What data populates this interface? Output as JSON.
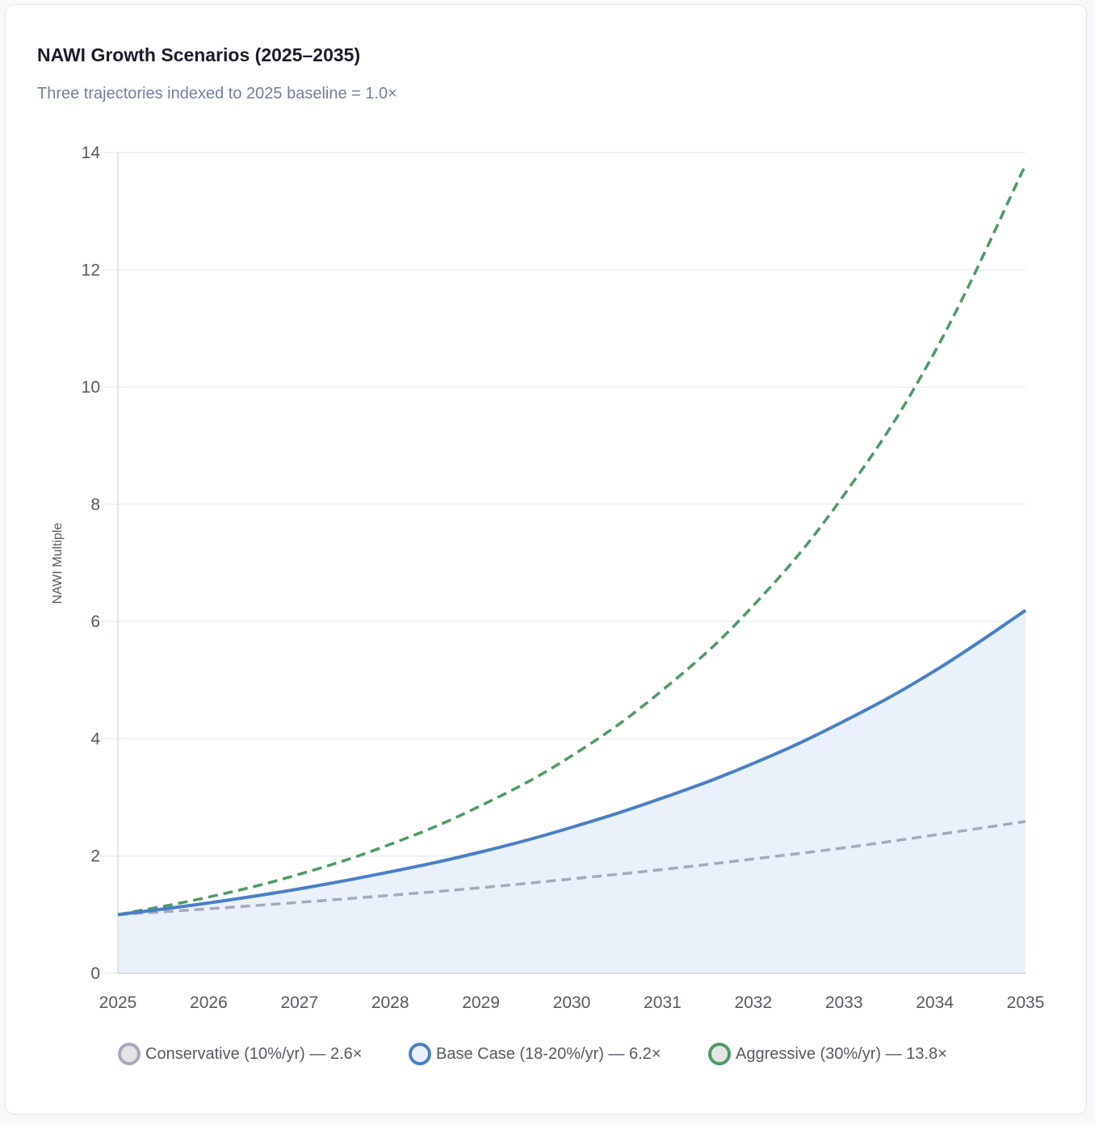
{
  "card": {
    "title": "NAWI Growth Scenarios (2025–2035)",
    "subtitle": "Three trajectories indexed to 2025 baseline = 1.0×"
  },
  "colors": {
    "conservative": "#a4aabb",
    "base": "#4a7fc8",
    "aggressive": "#4e9a65",
    "base_fill": "#ebf1fa",
    "grid": "#ebedf1",
    "axis": "#d9dde3"
  },
  "legend": [
    {
      "label": "Conservative (10%/yr) — 2.6×",
      "series": "conservative",
      "fill": "#e4e4e4",
      "border": "#a4aabb"
    },
    {
      "label": "Base Case (18-20%/yr) — 6.2×",
      "series": "base",
      "fill": "#eaf0fa",
      "border": "#4a7fc8"
    },
    {
      "label": "Aggressive (30%/yr) — 13.8×",
      "series": "aggressive",
      "fill": "#e4e4e4",
      "border": "#4e9a65"
    }
  ],
  "chart_data": {
    "type": "line",
    "title": "NAWI Growth Scenarios (2025–2035)",
    "subtitle": "Three trajectories indexed to 2025 baseline = 1.0×",
    "xlabel": "",
    "ylabel": "NAWI Multiple",
    "x": [
      "2025",
      "2026",
      "2027",
      "2028",
      "2029",
      "2030",
      "2031",
      "2032",
      "2033",
      "2034",
      "2035"
    ],
    "ylim": [
      0,
      14
    ],
    "yticks": [
      0,
      2,
      4,
      6,
      8,
      10,
      12,
      14
    ],
    "grid": true,
    "legend_position": "bottom",
    "series": [
      {
        "name": "Conservative (10%/yr) — 2.6×",
        "key": "conservative",
        "style": "dashed",
        "fill": false,
        "values": [
          1.0,
          1.1,
          1.21,
          1.33,
          1.46,
          1.61,
          1.77,
          1.95,
          2.14,
          2.36,
          2.59
        ]
      },
      {
        "name": "Base Case (18-20%/yr) — 6.2×",
        "key": "base",
        "style": "solid",
        "fill": true,
        "values": [
          1.0,
          1.2,
          1.44,
          1.73,
          2.07,
          2.49,
          2.99,
          3.58,
          4.3,
          5.16,
          6.19
        ]
      },
      {
        "name": "Aggressive (30%/yr) — 13.8×",
        "key": "aggressive",
        "style": "dashed",
        "fill": false,
        "values": [
          1.0,
          1.3,
          1.69,
          2.2,
          2.86,
          3.71,
          4.83,
          6.27,
          8.16,
          10.6,
          13.79
        ]
      }
    ]
  }
}
